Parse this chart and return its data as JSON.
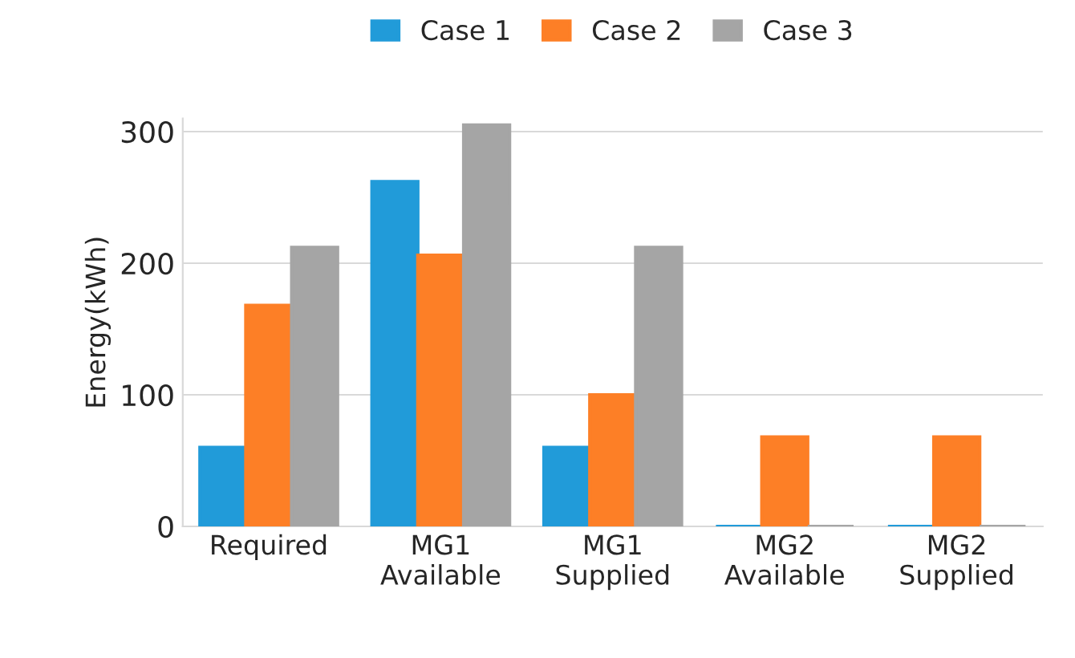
{
  "chart_data": {
    "type": "bar",
    "ylabel": "Energy(kWh)",
    "categories": [
      "Required",
      "MG1\nAvailable",
      "MG1\nSupplied",
      "MG2\nAvailable",
      "MG2\nSupplied"
    ],
    "series": [
      {
        "name": "Case 1",
        "color": "#219bd9",
        "values": [
          60,
          262,
          60,
          0,
          0
        ]
      },
      {
        "name": "Case 2",
        "color": "#fd7f26",
        "values": [
          168,
          206,
          100,
          68,
          68
        ]
      },
      {
        "name": "Case 3",
        "color": "#a5a5a5",
        "values": [
          212,
          305,
          212,
          0,
          0
        ]
      }
    ],
    "ylim": [
      0,
      310
    ],
    "yticks": [
      0,
      100,
      200,
      300
    ],
    "grid": "y",
    "legend": "top"
  }
}
